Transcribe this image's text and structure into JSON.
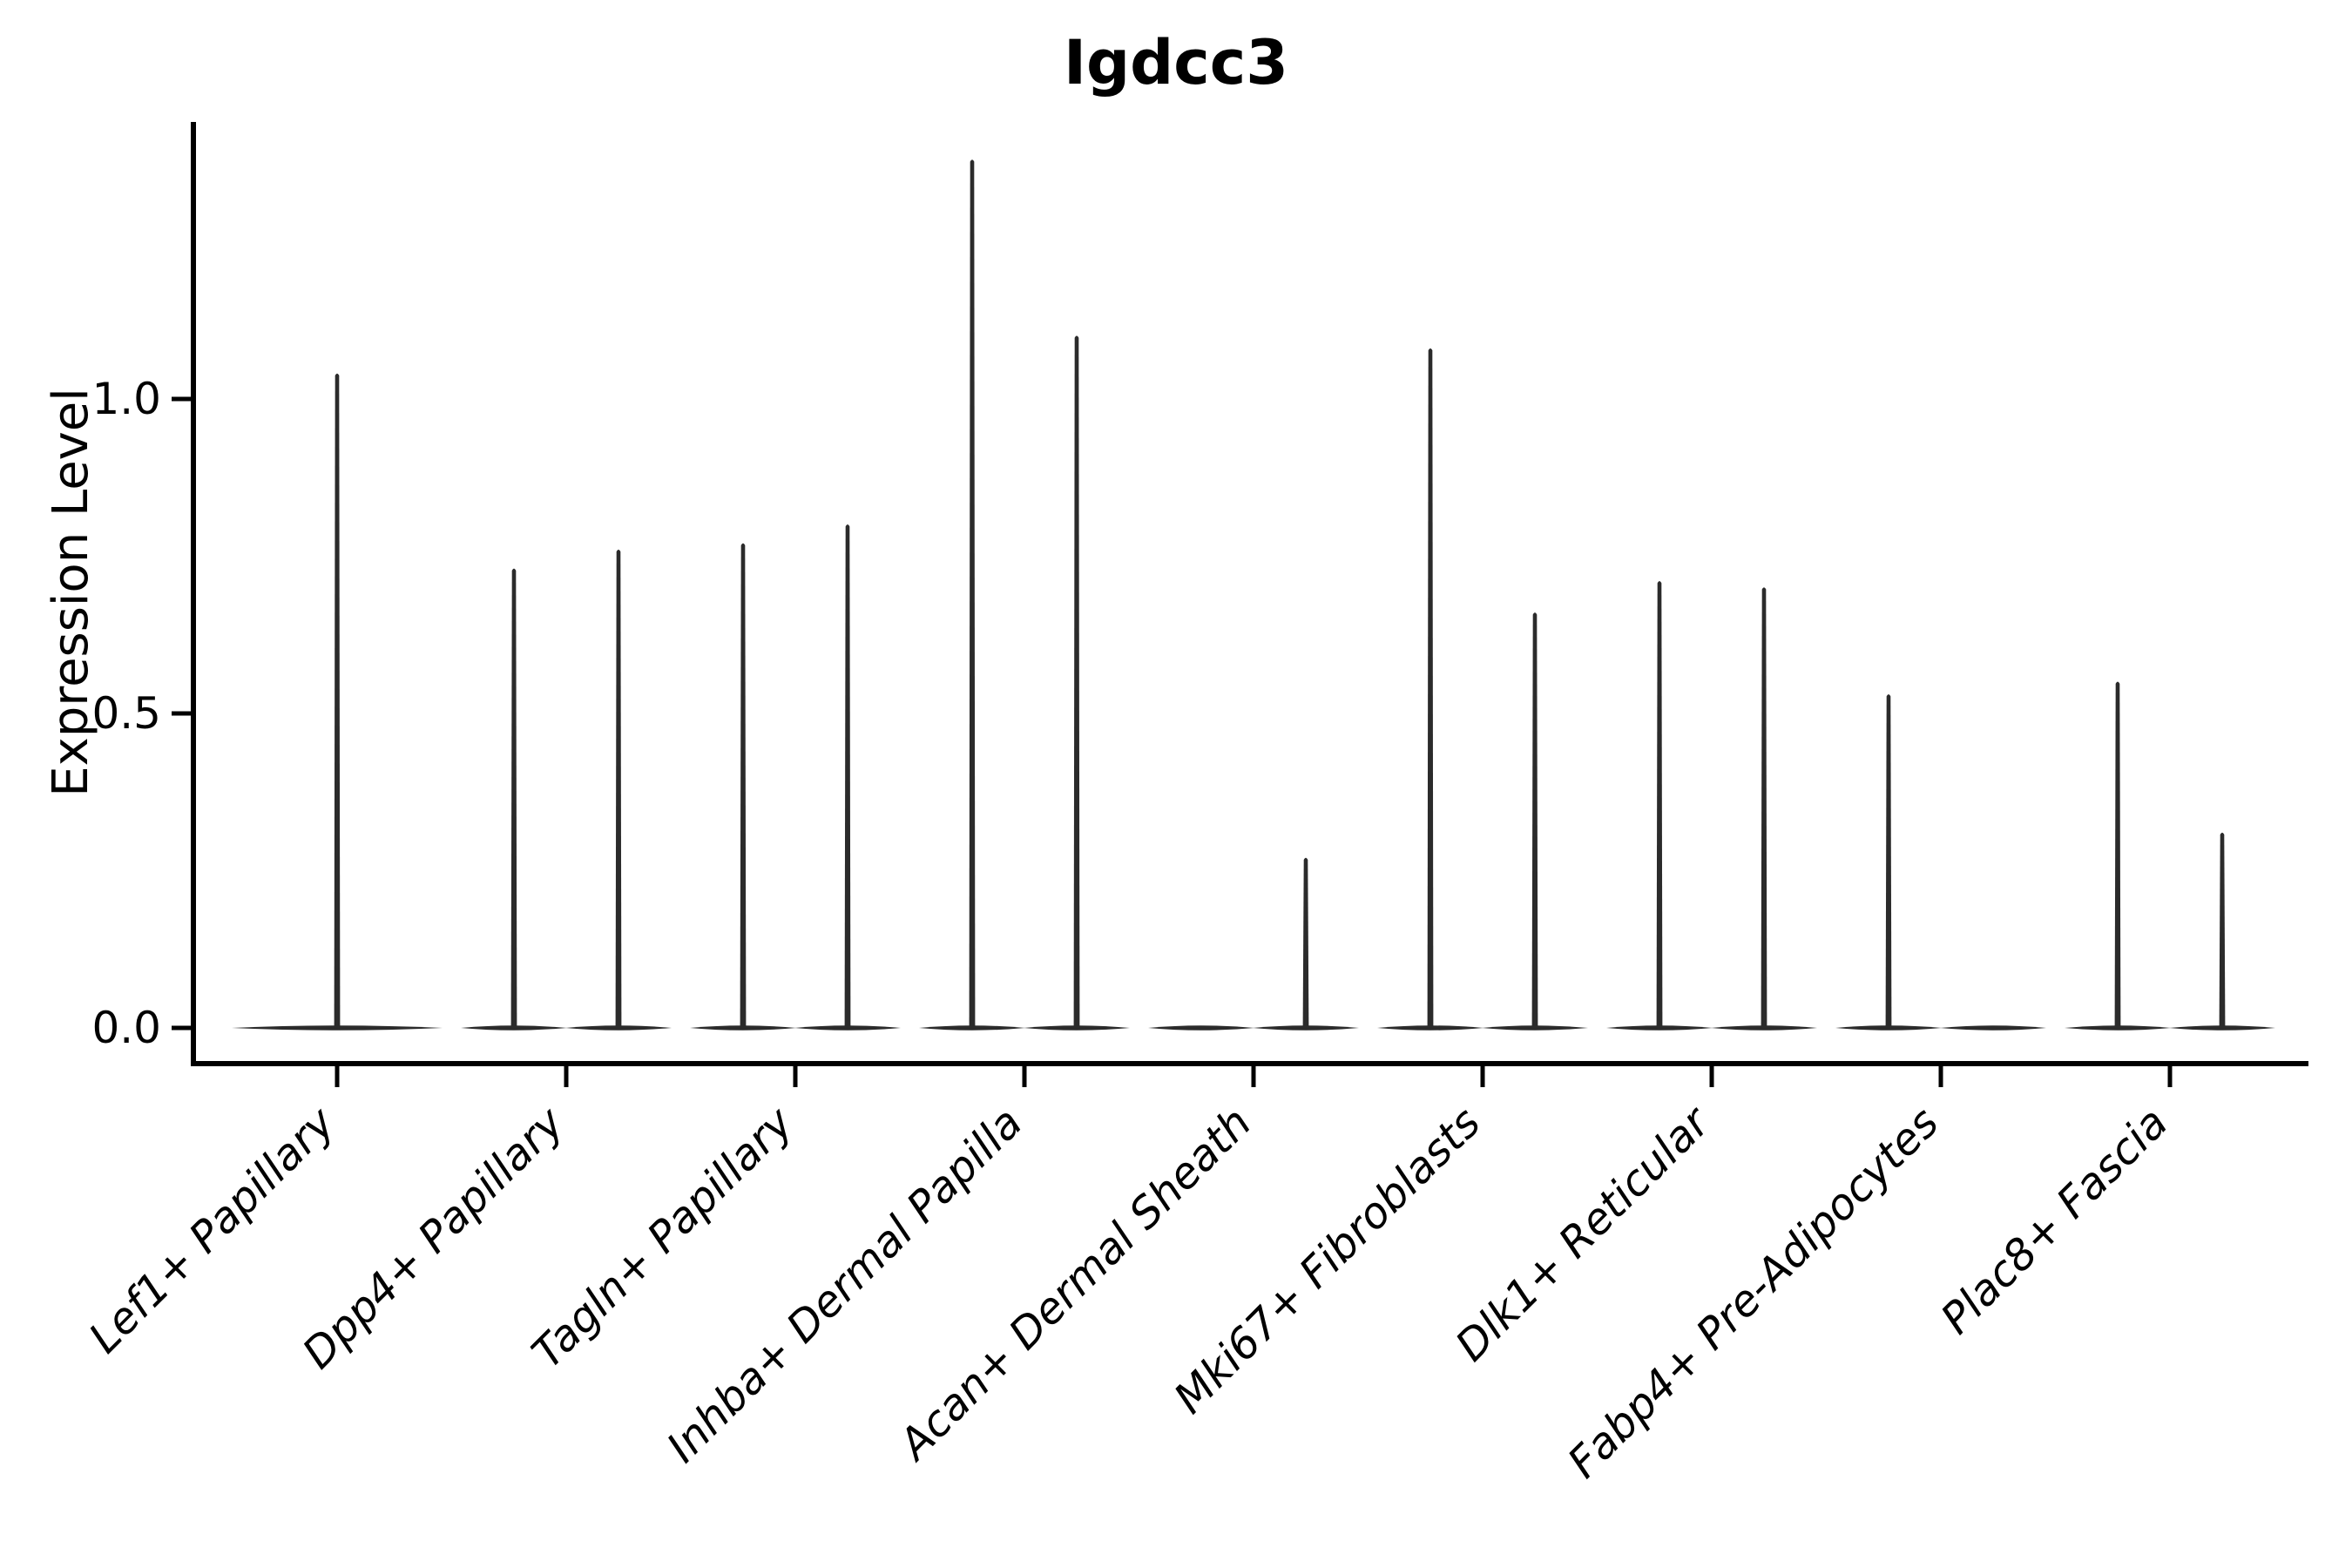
{
  "chart_data": {
    "type": "violin",
    "title": "Igdcc3",
    "ylabel": "Expression Level",
    "xlabel": "",
    "grid": false,
    "legend": "none",
    "ylim": [
      -0.06,
      1.44
    ],
    "yticks": [
      {
        "value": 0.0,
        "label": "0.0"
      },
      {
        "value": 0.5,
        "label": "0.5"
      },
      {
        "value": 1.0,
        "label": "1.0"
      }
    ],
    "line_color": "#2b2b2b",
    "axis_color": "#000000",
    "categories": [
      {
        "label": "Lef1+ Papillary",
        "violins": [
          {
            "position": "center",
            "max": 1.04
          }
        ]
      },
      {
        "label": "Dpp4+ Papillary",
        "violins": [
          {
            "position": "left",
            "max": 0.73
          },
          {
            "position": "right",
            "max": 0.76
          }
        ]
      },
      {
        "label": "Tagln+ Papillary",
        "violins": [
          {
            "position": "left",
            "max": 0.77
          },
          {
            "position": "right",
            "max": 0.8
          }
        ]
      },
      {
        "label": "Inhba+ Dermal Papilla",
        "violins": [
          {
            "position": "left",
            "max": 1.38
          },
          {
            "position": "right",
            "max": 1.1
          }
        ]
      },
      {
        "label": "Acan+ Dermal Sheath",
        "violins": [
          {
            "position": "left",
            "max": 0.0
          },
          {
            "position": "right",
            "max": 0.27
          }
        ]
      },
      {
        "label": "Mki67+ Fibroblasts",
        "violins": [
          {
            "position": "left",
            "max": 1.08
          },
          {
            "position": "right",
            "max": 0.66
          }
        ]
      },
      {
        "label": "Dlk1+ Reticular",
        "violins": [
          {
            "position": "left",
            "max": 0.71
          },
          {
            "position": "right",
            "max": 0.7
          }
        ]
      },
      {
        "label": "Fabp4+ Pre-Adipocytes",
        "violins": [
          {
            "position": "left",
            "max": 0.53
          },
          {
            "position": "right",
            "max": 0.0
          }
        ]
      },
      {
        "label": "Plac8+ Fascia",
        "violins": [
          {
            "position": "left",
            "max": 0.55
          },
          {
            "position": "right",
            "max": 0.31
          }
        ]
      }
    ]
  }
}
